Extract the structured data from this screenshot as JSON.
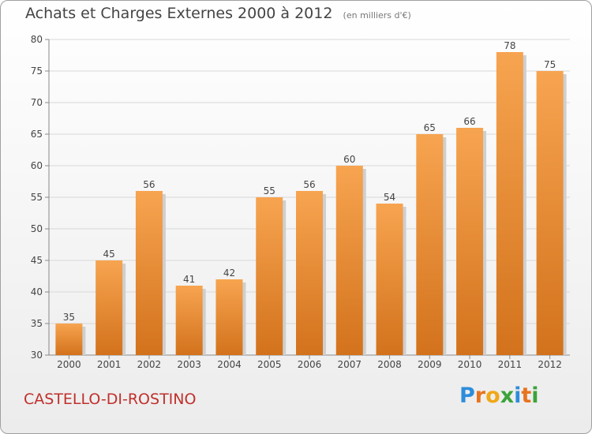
{
  "header": {
    "title": "Achats et Charges Externes 2000 à 2012",
    "subtitle": "(en milliers d'€)"
  },
  "footer": {
    "commune": "CASTELLO-DI-ROSTINO",
    "logo_text": "Proxiti"
  },
  "colors": {
    "bar_light": "#f7a450",
    "bar_dark": "#d3721c",
    "shadow": "#cfcfcf",
    "grid": "#d8d8d8",
    "axis": "#888888",
    "text": "#444444",
    "commune": "#c0302c",
    "logo_letters": [
      "#2e8ddb",
      "#e8731e",
      "#f0a818",
      "#3aa43a",
      "#2e8ddb",
      "#e8731e",
      "#3aa43a"
    ]
  },
  "chart_data": {
    "type": "bar",
    "categories": [
      "2000",
      "2001",
      "2002",
      "2003",
      "2004",
      "2005",
      "2006",
      "2007",
      "2008",
      "2009",
      "2010",
      "2011",
      "2012"
    ],
    "values": [
      35,
      45,
      56,
      41,
      42,
      55,
      56,
      60,
      54,
      65,
      66,
      78,
      75
    ],
    "title": "Achats et Charges Externes 2000 à 2012",
    "subtitle": "(en milliers d'€)",
    "xlabel": "",
    "ylabel": "",
    "ylim": [
      30,
      80
    ],
    "yticks": [
      30,
      35,
      40,
      45,
      50,
      55,
      60,
      65,
      70,
      75,
      80
    ],
    "grid": true,
    "legend": "none"
  }
}
